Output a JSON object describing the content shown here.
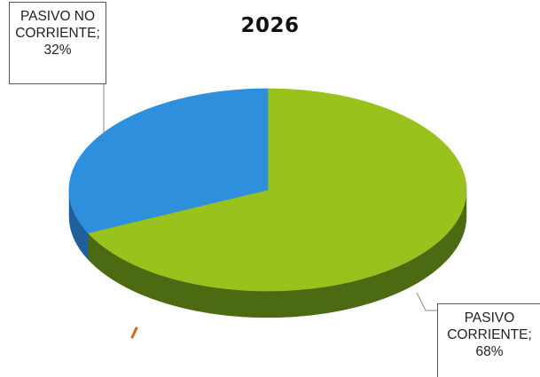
{
  "chart_data": {
    "type": "pie",
    "title": "2026",
    "slices": [
      {
        "name": "PASIVO CORRIENTE",
        "value": 68,
        "label_lines": [
          "PASIVO",
          "CORRIENTE;",
          "68%"
        ],
        "color": "#9ac21c",
        "side_color": "#4b6a12"
      },
      {
        "name": "PASIVO NO CORRIENTE",
        "value": 32,
        "label_lines": [
          "PASIVO NO",
          "CORRIENTE;",
          "32%"
        ],
        "color": "#2e8fdc",
        "side_color": "#1f5f9a"
      }
    ],
    "style": "3d",
    "legend": "none"
  }
}
